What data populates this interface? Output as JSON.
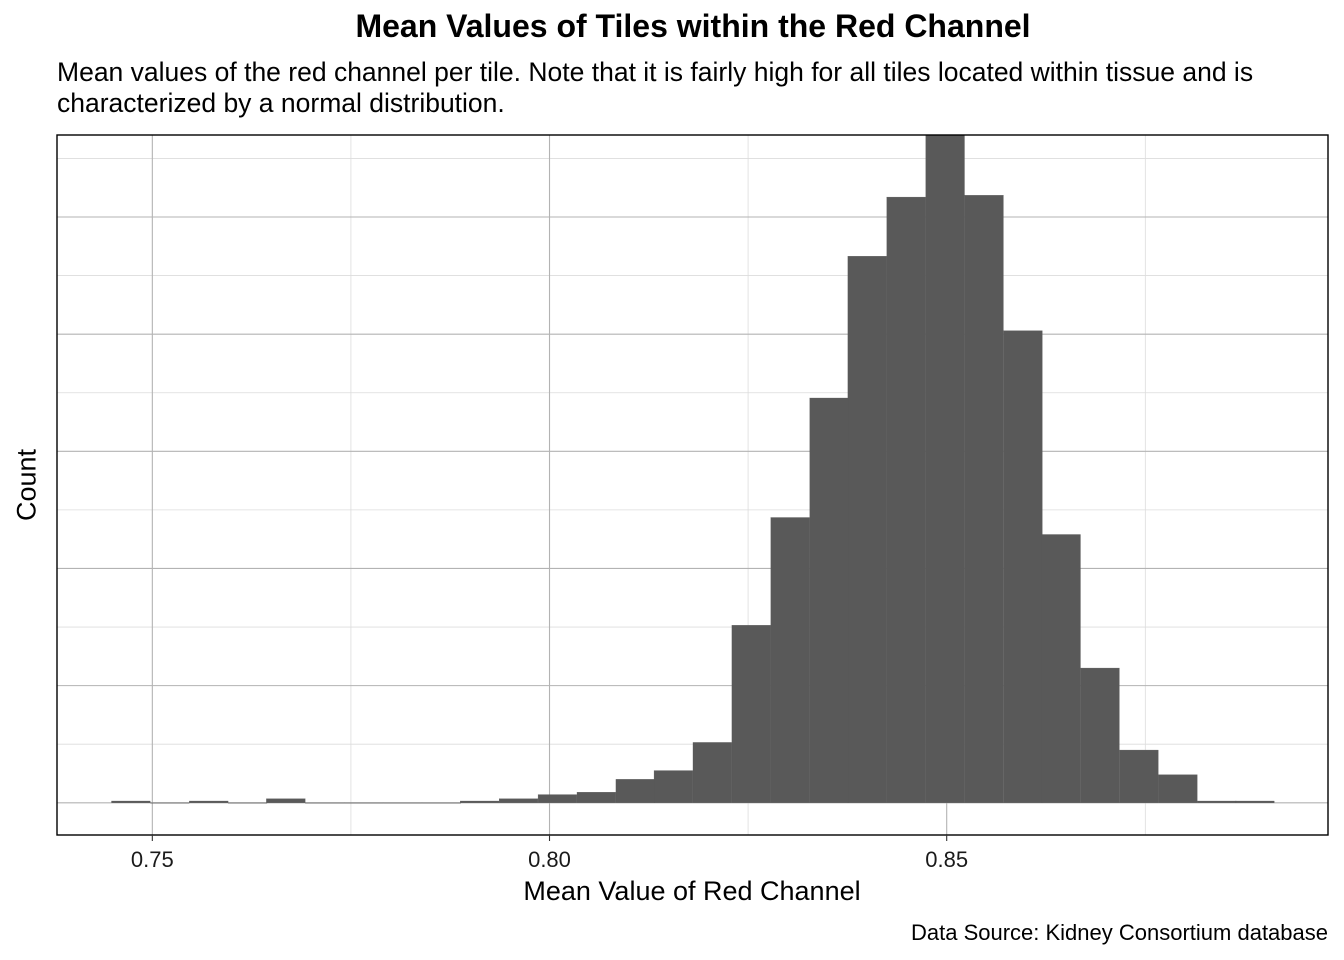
{
  "chart_data": {
    "type": "histogram",
    "title": "Mean Values of Tiles within the Red Channel",
    "subtitle": "Mean values of the red channel per tile. Note that it is fairly high for all tiles located within tissue and is characterized by a normal distribution.",
    "xlabel": "Mean Value of Red Channel",
    "ylabel": "Count",
    "caption": "Data Source: Kidney Consortium database",
    "x_ticks": [
      0.75,
      0.8,
      0.85
    ],
    "x_tick_labels": [
      "0.75",
      "0.80",
      "0.85"
    ],
    "xlim": [
      0.738,
      0.898
    ],
    "ylim": [
      -5.5,
      114
    ],
    "y_axis_labels_shown": false,
    "y_gridlines": [
      0,
      20,
      40,
      60,
      80,
      100
    ],
    "bin_width": 0.004878,
    "bins": [
      {
        "x": 0.7473,
        "count": 0.3
      },
      {
        "x": 0.7522,
        "count": 0
      },
      {
        "x": 0.7571,
        "count": 0.3
      },
      {
        "x": 0.762,
        "count": 0
      },
      {
        "x": 0.7668,
        "count": 0.7
      },
      {
        "x": 0.7717,
        "count": 0
      },
      {
        "x": 0.7766,
        "count": 0
      },
      {
        "x": 0.7815,
        "count": 0
      },
      {
        "x": 0.7864,
        "count": 0
      },
      {
        "x": 0.7912,
        "count": 0.3
      },
      {
        "x": 0.7961,
        "count": 0.7
      },
      {
        "x": 0.801,
        "count": 1.4
      },
      {
        "x": 0.8059,
        "count": 1.8
      },
      {
        "x": 0.8108,
        "count": 4
      },
      {
        "x": 0.8156,
        "count": 5.5
      },
      {
        "x": 0.8205,
        "count": 10.3
      },
      {
        "x": 0.8254,
        "count": 30.3
      },
      {
        "x": 0.8303,
        "count": 48.7
      },
      {
        "x": 0.8352,
        "count": 69.1
      },
      {
        "x": 0.84,
        "count": 93.3
      },
      {
        "x": 0.8449,
        "count": 103.4
      },
      {
        "x": 0.8498,
        "count": 114
      },
      {
        "x": 0.8547,
        "count": 103.7
      },
      {
        "x": 0.8596,
        "count": 80.6
      },
      {
        "x": 0.8644,
        "count": 45.8
      },
      {
        "x": 0.8693,
        "count": 23
      },
      {
        "x": 0.8742,
        "count": 9
      },
      {
        "x": 0.8791,
        "count": 4.8
      },
      {
        "x": 0.884,
        "count": 0.3
      },
      {
        "x": 0.8888,
        "count": 0.3
      }
    ],
    "bar_color": "#595959",
    "grid": true,
    "theme": "linedraw"
  }
}
